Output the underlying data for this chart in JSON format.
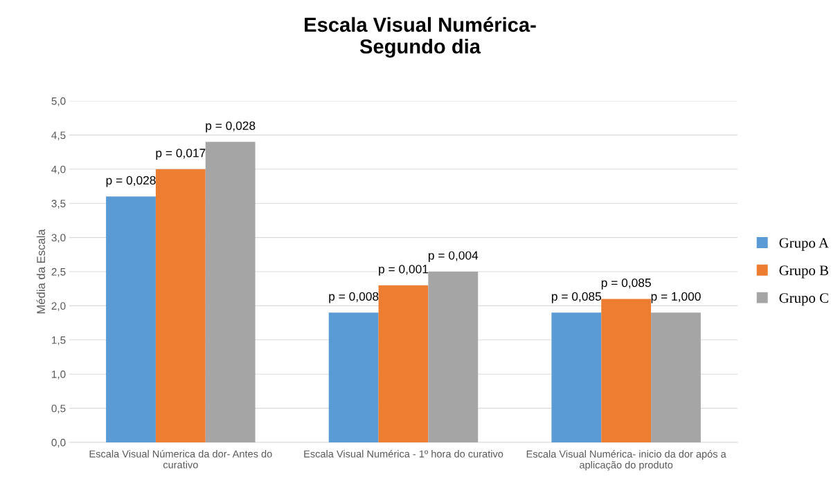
{
  "chart_data": {
    "type": "bar",
    "title": "Escala Visual Numérica-\nSegundo dia",
    "ylabel": "Média da Escala",
    "categories": [
      "Escala Visual Númerica da dor- Antes do curativo",
      "Escala Visual Numérica - 1º hora do curativo",
      "Escala Visual Numérica- inicio da dor após a aplicação do produto"
    ],
    "series": [
      {
        "name": "Grupo A",
        "color": "#5b9bd5",
        "values": [
          3.6,
          1.9,
          1.9
        ]
      },
      {
        "name": "Grupo B",
        "color": "#ed7d31",
        "values": [
          4.0,
          2.3,
          2.1
        ]
      },
      {
        "name": "Grupo C",
        "color": "#a5a5a5",
        "values": [
          4.4,
          2.5,
          1.9
        ]
      }
    ],
    "annotations": [
      "p = 0,028",
      "p = 0,017",
      "p = 0,028",
      "p = 0,008",
      "p = 0,001",
      "p = 0,004",
      "p = 0,085",
      "p = 0,085",
      "p = 1,000"
    ],
    "ylim": [
      0,
      5
    ],
    "yticks": [
      {
        "value": 0,
        "label": "0,0"
      },
      {
        "value": 0.5,
        "label": "0,5"
      },
      {
        "value": 1,
        "label": "1,0"
      },
      {
        "value": 1.5,
        "label": "1,5"
      },
      {
        "value": 2,
        "label": "2,0"
      },
      {
        "value": 2.5,
        "label": "2,5"
      },
      {
        "value": 3,
        "label": "3,0"
      },
      {
        "value": 3.5,
        "label": "3,5"
      },
      {
        "value": 4,
        "label": "4,0"
      },
      {
        "value": 4.5,
        "label": "4,5"
      },
      {
        "value": 5,
        "label": "5,0"
      }
    ],
    "grid": "y",
    "legend": "right"
  }
}
